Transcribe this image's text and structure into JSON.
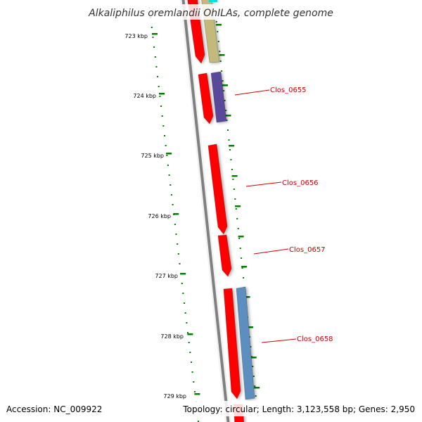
{
  "title": "Alkaliphilus oremlandii OhILAs, complete genome",
  "ticks": [
    "723 kbp",
    "724 kbp",
    "725 kbp",
    "726 kbp",
    "727 kbp",
    "728 kbp",
    "729 kbp"
  ],
  "genes": [
    "Clos_0655",
    "Clos_0656",
    "Clos_0657",
    "Clos_0658"
  ],
  "footer": {
    "accession": "Accession: NC_009922",
    "summary": "Topology: circular; Length: 3,123,558 bp; Genes: 2,950"
  },
  "colors": {
    "backbone": "#808080",
    "cds_strand": "#ff0000",
    "tick_mark": "#008000",
    "gene_label": "#cc0000",
    "feature_olive": "#c2b97a",
    "feature_purple": "#5a4a9a",
    "feature_steelblue": "#5b8fc0",
    "feature_cyan": "#00e0e0"
  }
}
